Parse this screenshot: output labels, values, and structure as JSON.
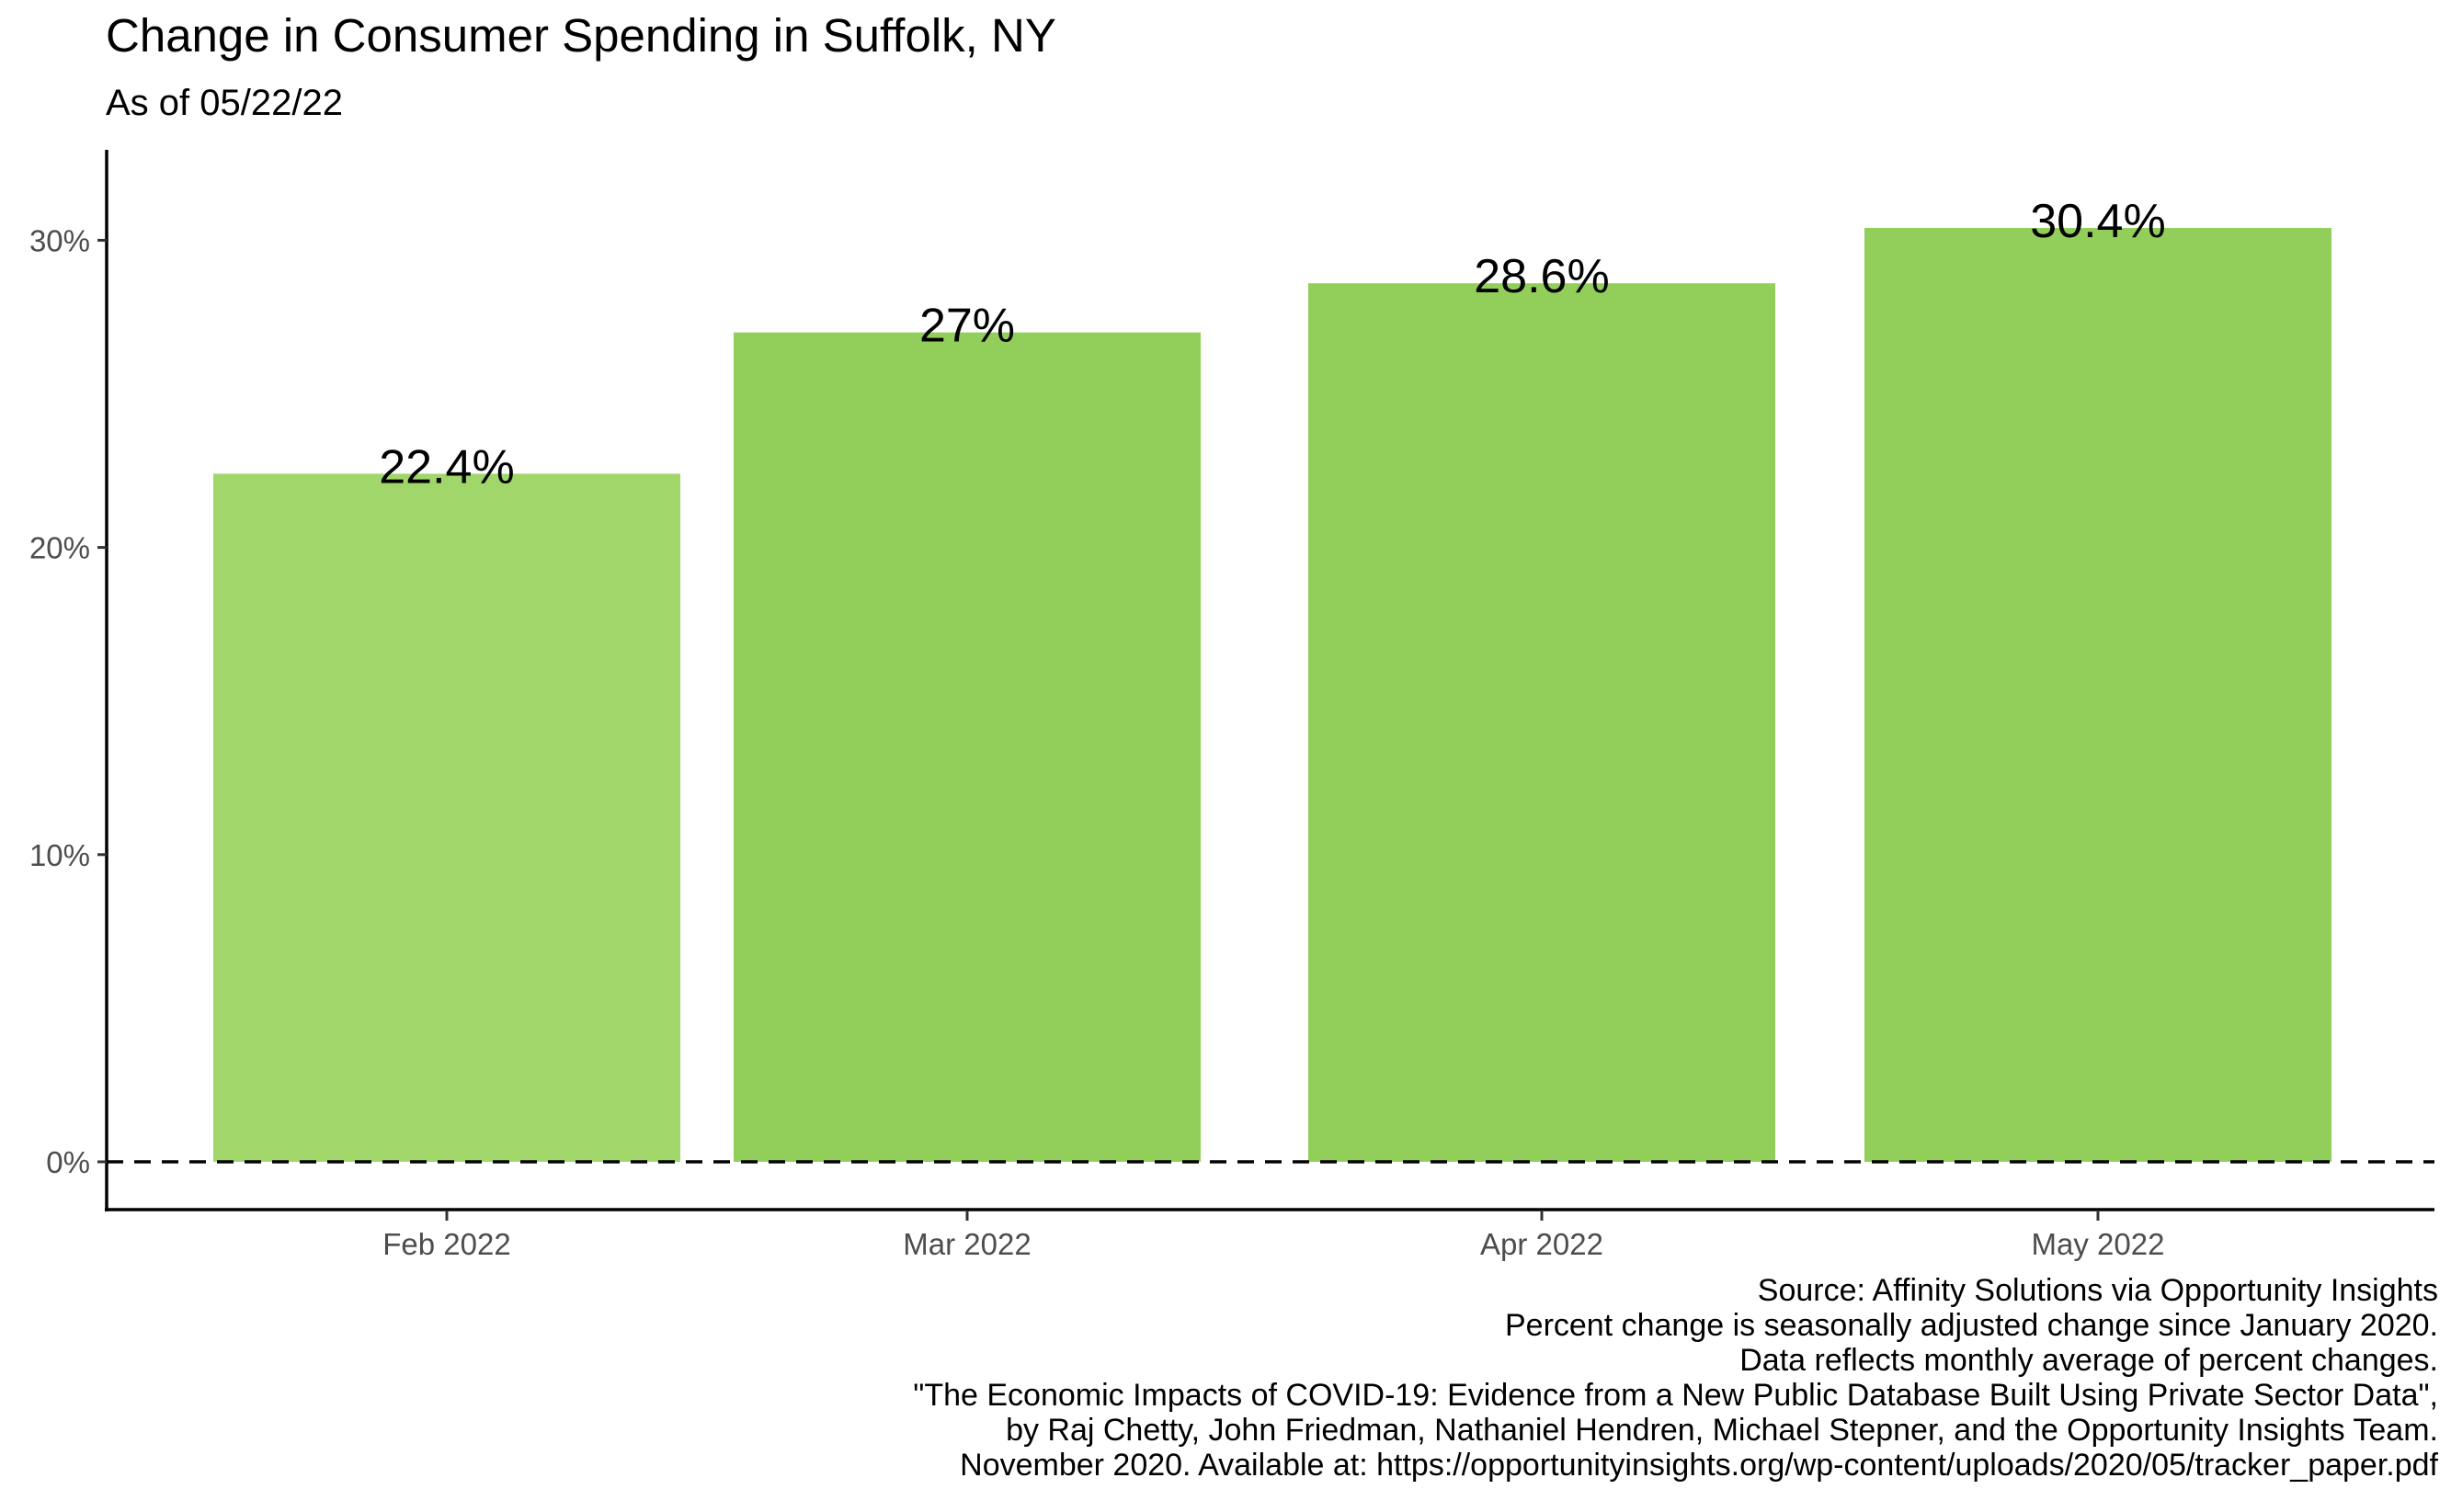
{
  "chart_data": {
    "type": "bar",
    "title": "Change in Consumer Spending in Suffolk, NY",
    "subtitle": "As of 05/22/22",
    "categories": [
      "Feb 2022",
      "Mar 2022",
      "Apr 2022",
      "May 2022"
    ],
    "values": [
      22.4,
      27,
      28.6,
      30.4
    ],
    "value_labels": [
      "22.4%",
      "27%",
      "28.6%",
      "30.4%"
    ],
    "bar_colors": [
      "#a1d76a",
      "#91cf5a",
      "#91cf5a",
      "#91cf5a"
    ],
    "y_ticks": [
      0,
      10,
      20,
      30
    ],
    "y_tick_labels": [
      "0%",
      "10%",
      "20%",
      "30%"
    ],
    "ylim": [
      -1.5,
      33
    ],
    "reference_line": {
      "y": 0,
      "style": "dashed"
    },
    "xlabel": "",
    "ylabel": "",
    "grid": false,
    "legend": "none",
    "caption": [
      "Source: Affinity Solutions via Opportunity Insights",
      "Percent change is seasonally adjusted change since January 2020.",
      "Data reflects monthly average of percent changes.",
      "\"The Economic Impacts of COVID-19: Evidence from a New Public Database Built Using Private Sector Data\",",
      "by Raj Chetty, John Friedman, Nathaniel Hendren, Michael Stepner, and the Opportunity Insights Team.",
      "November 2020. Available at: https://opportunityinsights.org/wp-content/uploads/2020/05/tracker_paper.pdf"
    ]
  }
}
